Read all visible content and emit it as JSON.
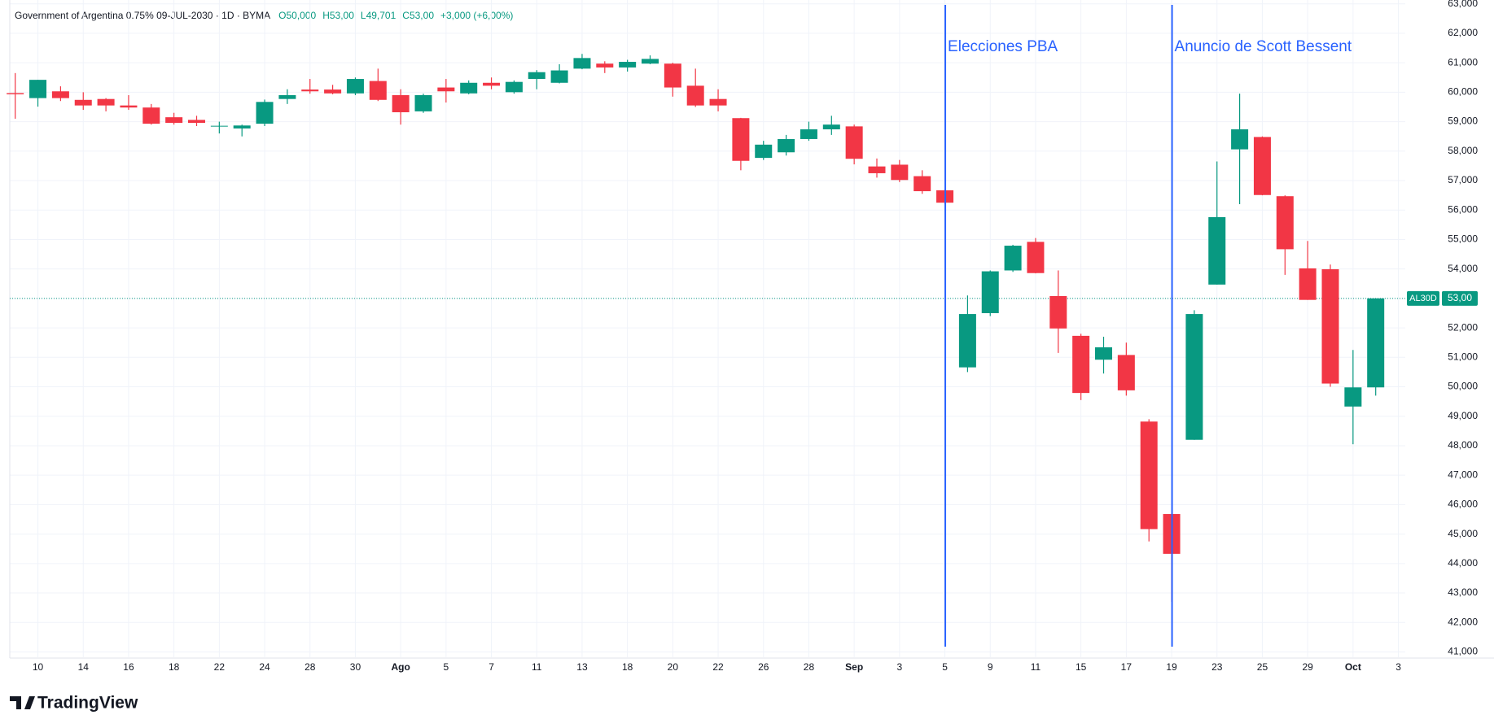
{
  "chart_data": {
    "type": "candlestick",
    "title": "Government of Argentina 0.75% 09-JUL-2030 · 1D · BYMA",
    "summary": [
      "O50,000",
      "H53,00",
      "L49,701",
      "C53,00",
      "+3,000 (+6,00%)"
    ],
    "branding": "TradingView",
    "categories": [
      null,
      "10",
      null,
      "14",
      null,
      "16",
      null,
      "18",
      null,
      "22",
      null,
      "24",
      null,
      "28",
      null,
      "30",
      null,
      "Ago",
      null,
      "5",
      null,
      "7",
      null,
      "11",
      null,
      "13",
      null,
      "18",
      null,
      "20",
      null,
      "22",
      null,
      "26",
      null,
      "28",
      null,
      "Sep",
      null,
      "3",
      null,
      "5",
      null,
      "9",
      null,
      "11",
      null,
      "15",
      null,
      "17",
      null,
      "19",
      null,
      "23",
      null,
      "25",
      null,
      "29",
      null,
      "Oct",
      null,
      "3"
    ],
    "open": [
      59.97,
      59.8,
      60.03,
      59.74,
      59.77,
      59.55,
      59.48,
      59.15,
      59.06,
      58.85,
      58.77,
      58.93,
      59.77,
      60.09,
      60.09,
      59.96,
      60.38,
      59.9,
      59.35,
      60.16,
      59.96,
      60.32,
      60.0,
      60.45,
      60.32,
      60.8,
      60.97,
      60.84,
      60.97,
      60.97,
      60.22,
      59.77,
      59.12,
      57.77,
      57.96,
      58.41,
      58.74,
      58.84,
      57.48,
      57.54,
      57.15,
      56.67,
      50.66,
      52.5,
      53.95,
      54.92,
      53.08,
      51.73,
      50.92,
      51.08,
      48.82,
      45.68,
      48.2,
      53.47,
      58.06,
      58.48,
      56.47,
      54.02,
      53.99,
      49.33,
      49.98,
      null
    ],
    "high": [
      60.65,
      60.42,
      60.2,
      60.0,
      59.8,
      59.9,
      59.6,
      59.3,
      59.2,
      59.0,
      58.9,
      59.75,
      60.1,
      60.45,
      60.25,
      60.5,
      60.8,
      60.1,
      59.95,
      60.45,
      60.4,
      60.5,
      60.4,
      60.75,
      60.95,
      61.3,
      61.05,
      61.1,
      61.25,
      61.0,
      60.8,
      60.1,
      59.13,
      58.35,
      58.55,
      59.0,
      59.2,
      58.9,
      57.75,
      57.7,
      57.35,
      56.7,
      53.1,
      53.95,
      54.82,
      55.05,
      53.95,
      51.8,
      51.7,
      51.5,
      48.9,
      45.7,
      52.6,
      57.65,
      59.95,
      58.5,
      56.5,
      54.95,
      54.15,
      51.25,
      53.0,
      null
    ],
    "low": [
      59.1,
      59.51,
      59.7,
      59.4,
      59.35,
      59.4,
      58.9,
      58.9,
      58.85,
      58.6,
      58.5,
      58.85,
      59.6,
      59.95,
      59.93,
      59.9,
      59.7,
      58.9,
      59.3,
      59.65,
      59.93,
      60.1,
      59.95,
      60.1,
      60.3,
      60.78,
      60.65,
      60.7,
      60.95,
      59.85,
      59.5,
      59.35,
      57.35,
      57.7,
      57.85,
      58.35,
      58.55,
      57.55,
      57.1,
      56.95,
      56.55,
      56.2,
      50.5,
      52.4,
      53.9,
      53.85,
      51.15,
      49.55,
      50.45,
      49.7,
      44.75,
      42.7,
      48.2,
      53.47,
      56.2,
      56.5,
      53.8,
      52.95,
      50.0,
      48.05,
      49.7,
      null
    ],
    "close": [
      59.93,
      60.42,
      59.8,
      59.55,
      59.55,
      59.48,
      58.93,
      58.96,
      58.96,
      58.86,
      58.87,
      59.67,
      59.9,
      60.03,
      59.96,
      60.45,
      59.74,
      59.32,
      59.9,
      60.03,
      60.32,
      60.22,
      60.35,
      60.68,
      60.74,
      61.16,
      60.84,
      61.03,
      61.13,
      60.16,
      59.55,
      59.55,
      57.67,
      58.22,
      58.41,
      58.74,
      58.9,
      57.74,
      57.25,
      57.02,
      56.64,
      56.25,
      52.47,
      53.92,
      54.79,
      53.86,
      51.98,
      49.79,
      51.34,
      49.88,
      45.17,
      44.33,
      52.47,
      55.76,
      58.74,
      56.51,
      54.67,
      52.95,
      50.11,
      49.98,
      53.0,
      null
    ],
    "up_color": "#089981",
    "down_color": "#f23645",
    "ylim": [
      40.82,
      63.13
    ],
    "yticks": [
      {
        "value": 41,
        "label": "41,000"
      },
      {
        "value": 42,
        "label": "42,000"
      },
      {
        "value": 43,
        "label": "43,000"
      },
      {
        "value": 44,
        "label": "44,000"
      },
      {
        "value": 45,
        "label": "45,000"
      },
      {
        "value": 46,
        "label": "46,000"
      },
      {
        "value": 47,
        "label": "47,000"
      },
      {
        "value": 48,
        "label": "48,000"
      },
      {
        "value": 49,
        "label": "49,000"
      },
      {
        "value": 50,
        "label": "50,000"
      },
      {
        "value": 51,
        "label": "51,000"
      },
      {
        "value": 52,
        "label": "52,000"
      },
      {
        "value": 53,
        "label": "53,000"
      },
      {
        "value": 54,
        "label": "54,000"
      },
      {
        "value": 55,
        "label": "55,000"
      },
      {
        "value": 56,
        "label": "56,000"
      },
      {
        "value": 57,
        "label": "57,000"
      },
      {
        "value": 58,
        "label": "58,000"
      },
      {
        "value": 59,
        "label": "59,000"
      },
      {
        "value": 60,
        "label": "60,000"
      },
      {
        "value": 61,
        "label": "61,000"
      },
      {
        "value": 62,
        "label": "62,000"
      },
      {
        "value": 63,
        "label": "63,000"
      }
    ],
    "grid": true,
    "annotations": [
      {
        "index": 41,
        "label": "Elecciones PBA",
        "color": "#2962ff"
      },
      {
        "index": 51,
        "label": "Anuncio de Scott Bessent",
        "color": "#2962ff"
      }
    ],
    "last_price": {
      "symbol": "AL30D",
      "value": 53,
      "label": "53,00"
    }
  }
}
